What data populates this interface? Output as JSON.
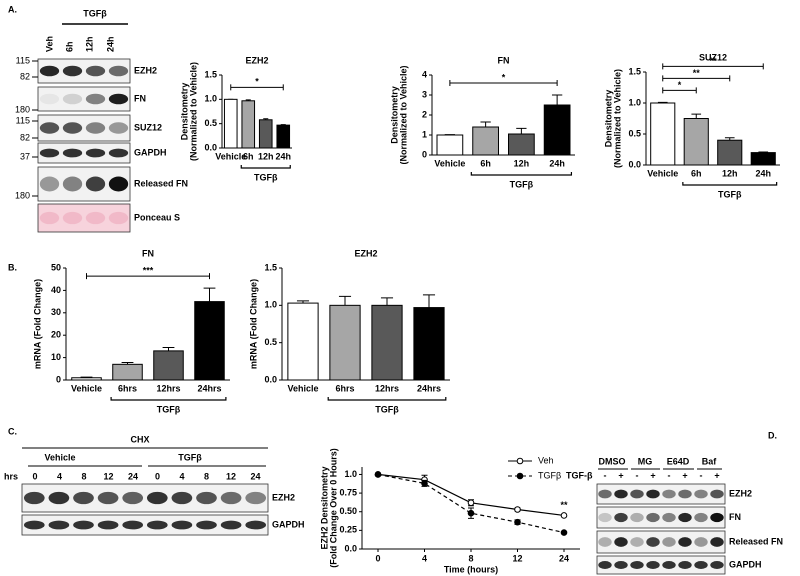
{
  "panel_labels": [
    "A.",
    "B.",
    "C.",
    "D."
  ],
  "blot_a": {
    "header": "TGFβ",
    "lanes": [
      "Veh",
      "6h",
      "12h",
      "24h"
    ],
    "markers": [
      115,
      82,
      180,
      115,
      82,
      37,
      180
    ],
    "bands": [
      "EZH2",
      "FN",
      "SUZ12",
      "GAPDH",
      "Released FN",
      "Ponceau S"
    ]
  },
  "blot_c": {
    "header": "CHX",
    "groups": [
      "Vehicle",
      "TGFβ"
    ],
    "time_label": "hrs",
    "times": [
      0,
      4,
      8,
      12,
      24,
      0,
      4,
      8,
      12,
      24
    ],
    "bands": [
      "EZH2",
      "GAPDH"
    ]
  },
  "blot_d": {
    "groups": [
      "DMSO",
      "MG",
      "E64D",
      "Baf"
    ],
    "treatment": "TGF-β",
    "signs": [
      "-",
      "+",
      "-",
      "+",
      "-",
      "+",
      "-",
      "+"
    ],
    "bands": [
      "EZH2",
      "FN",
      "Released FN",
      "GAPDH"
    ]
  },
  "chart_data": [
    {
      "type": "bar",
      "title": "EZH2",
      "ylabel": [
        "Densitometry",
        "(Normalized to Vehicle)"
      ],
      "categories": [
        "Vehicle",
        "6h",
        "12h",
        "24h"
      ],
      "values": [
        1.0,
        0.97,
        0.58,
        0.47
      ],
      "errors": [
        0,
        0.02,
        0.02,
        0.01
      ],
      "colors": [
        "#ffffff",
        "#a6a6a6",
        "#595959",
        "#000000"
      ],
      "ylim": [
        0,
        1.5
      ],
      "yticks": [
        {
          "value": 0,
          "label": "0.0"
        },
        0.5,
        {
          "value": 1,
          "label": "1.0"
        },
        1.5
      ],
      "group": {
        "label": "TGFβ",
        "from": "6h",
        "to": "24h"
      },
      "brackets": [
        {
          "from": "Vehicle",
          "to": "24h",
          "text": "*"
        }
      ]
    },
    {
      "type": "bar",
      "title": "FN",
      "ylabel": [
        "Densitometry",
        "(Normalized to Vehicle)"
      ],
      "categories": [
        "Vehicle",
        "6h",
        "12h",
        "24h"
      ],
      "values": [
        1.0,
        1.4,
        1.05,
        2.5
      ],
      "errors": [
        0.02,
        0.25,
        0.28,
        0.5
      ],
      "colors": [
        "#ffffff",
        "#a6a6a6",
        "#595959",
        "#000000"
      ],
      "ylim": [
        0,
        4
      ],
      "yticks": [
        0,
        1,
        2,
        3,
        4
      ],
      "group": {
        "label": "TGFβ",
        "from": "6h",
        "to": "24h"
      },
      "brackets": [
        {
          "from": "Vehicle",
          "to": "24h",
          "text": "*"
        }
      ]
    },
    {
      "type": "bar",
      "title": "SUZ12",
      "ylabel": [
        "Densitometry",
        "(Normalized to Vehicle)"
      ],
      "categories": [
        "Vehicle",
        "6h",
        "12h",
        "24h"
      ],
      "values": [
        1.0,
        0.75,
        0.4,
        0.2
      ],
      "errors": [
        0.01,
        0.07,
        0.04,
        0.01
      ],
      "colors": [
        "#ffffff",
        "#a6a6a6",
        "#595959",
        "#000000"
      ],
      "ylim": [
        0,
        1.5
      ],
      "yticks": [
        {
          "value": 0,
          "label": "0.0"
        },
        0.5,
        {
          "value": 1,
          "label": "1.0"
        },
        1.5
      ],
      "group": {
        "label": "TGFβ",
        "from": "6h",
        "to": "24h"
      },
      "brackets": [
        {
          "from": "Vehicle",
          "to": "6h",
          "text": "*"
        },
        {
          "from": "Vehicle",
          "to": "12h",
          "text": "**"
        },
        {
          "from": "Vehicle",
          "to": "24h",
          "text": "**"
        }
      ]
    },
    {
      "type": "bar",
      "title": "FN",
      "ylabel": [
        "mRNA (Fold Change)"
      ],
      "categories": [
        "Vehicle",
        "6hrs",
        "12hrs",
        "24hrs"
      ],
      "values": [
        1,
        7,
        13,
        35
      ],
      "errors": [
        0.3,
        0.8,
        1.5,
        6
      ],
      "colors": [
        "#ffffff",
        "#a6a6a6",
        "#595959",
        "#000000"
      ],
      "ylim": [
        0,
        50
      ],
      "yticks": [
        0,
        10,
        20,
        30,
        40,
        50
      ],
      "group": {
        "label": "TGFβ",
        "from": "6hrs",
        "to": "24hrs"
      },
      "brackets": [
        {
          "from": "Vehicle",
          "to": "24hrs",
          "text": "***"
        }
      ]
    },
    {
      "type": "bar",
      "title": "EZH2",
      "ylabel": [
        "mRNA (Fold Change)"
      ],
      "categories": [
        "Vehicle",
        "6hrs",
        "12hrs",
        "24hrs"
      ],
      "values": [
        1.03,
        1.0,
        1.0,
        0.97
      ],
      "errors": [
        0.03,
        0.12,
        0.1,
        0.17
      ],
      "colors": [
        "#ffffff",
        "#a6a6a6",
        "#595959",
        "#000000"
      ],
      "ylim": [
        0,
        1.5
      ],
      "yticks": [
        {
          "value": 0,
          "label": "0.0"
        },
        0.5,
        {
          "value": 1,
          "label": "1.0"
        },
        1.5
      ],
      "group": {
        "label": "TGFβ",
        "from": "6hrs",
        "to": "24hrs"
      },
      "brackets": []
    },
    {
      "type": "line",
      "ylabel": [
        "EZH2 Densitometry",
        "(Fold Change Over 0 Hours)"
      ],
      "xlabel": "Time (hours)",
      "categories": [
        "0",
        "4",
        "8",
        "12",
        "24"
      ],
      "series": [
        {
          "name": "Veh",
          "color": "#000000",
          "marker": "open",
          "dashed": false,
          "values": [
            1.0,
            0.93,
            0.62,
            0.53,
            0.45
          ],
          "errors": [
            0,
            0.06,
            0.04,
            0.02,
            0.01
          ]
        },
        {
          "name": "TGFβ",
          "color": "#000000",
          "marker": "filled",
          "dashed": true,
          "values": [
            1.0,
            0.88,
            0.48,
            0.36,
            0.22
          ],
          "errors": [
            0,
            0.04,
            0.07,
            0.03,
            0.01
          ]
        }
      ],
      "ylim": [
        0,
        1.1
      ],
      "yticks": [
        {
          "value": 0,
          "label": "0.0"
        },
        0.25,
        {
          "value": 0.5,
          "label": "0.50"
        },
        0.75,
        {
          "value": 1,
          "label": "1.0"
        }
      ],
      "legend": "upper right",
      "annotations": [
        {
          "text": "**",
          "at": "24"
        }
      ]
    }
  ]
}
